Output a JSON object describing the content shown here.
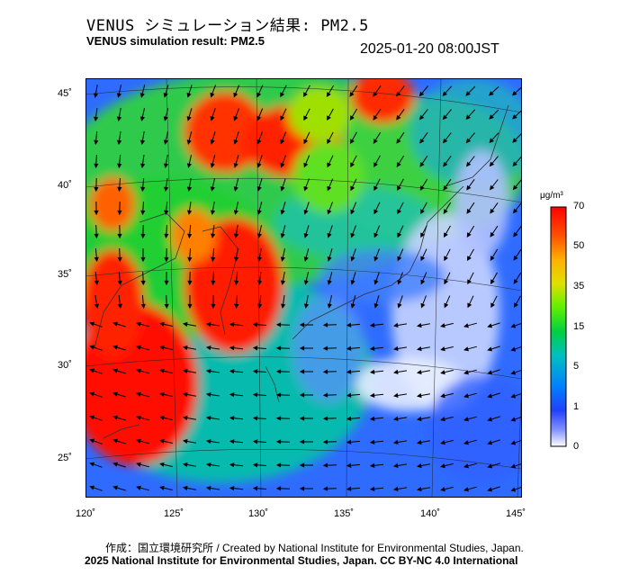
{
  "title_jp": "VENUS シミュレーション結果: PM2.5",
  "title_en": "VENUS simulation result: PM2.5",
  "datetime": "2025-01-20 08:00JST",
  "map": {
    "lat_labels": [
      "45˚",
      "40˚",
      "35˚",
      "30˚",
      "25˚"
    ],
    "lon_labels": [
      "120˚",
      "125˚",
      "130˚",
      "135˚",
      "140˚",
      "145˚"
    ],
    "lon_range": [
      120,
      145
    ],
    "lat_range": [
      23,
      46
    ]
  },
  "colorbar": {
    "unit": "μg/m³",
    "ticks": [
      "70",
      "50",
      "35",
      "15",
      "5",
      "1",
      "0"
    ],
    "colors": [
      "#ff0000",
      "#ff6000",
      "#ffc000",
      "#80ff00",
      "#00e000",
      "#00c0c0",
      "#0080ff",
      "#2040ff",
      "#a0b0ff",
      "#ffffff"
    ]
  },
  "credits": {
    "line1": "作成：国立環境研究所 / Created by National Institute for Environmental Studies, Japan.",
    "line2": "2025 National Institute for Environmental Studies, Japan. CC BY-NC 4.0 International"
  }
}
